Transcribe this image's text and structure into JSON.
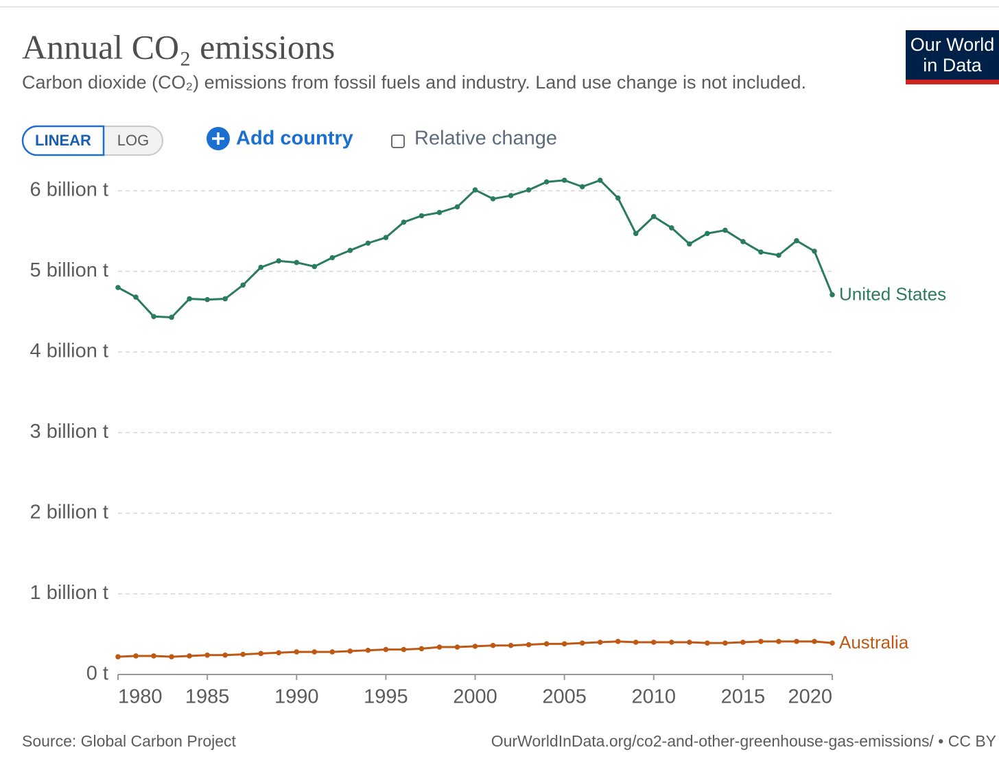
{
  "chart_data": {
    "type": "line",
    "title": "Annual CO₂ emissions",
    "subtitle": "Carbon dioxide (CO₂) emissions from fossil fuels and industry. Land use change is not included.",
    "x": [
      1980,
      1981,
      1982,
      1983,
      1984,
      1985,
      1986,
      1987,
      1988,
      1989,
      1990,
      1991,
      1992,
      1993,
      1994,
      1995,
      1996,
      1997,
      1998,
      1999,
      2000,
      2001,
      2002,
      2003,
      2004,
      2005,
      2006,
      2007,
      2008,
      2009,
      2010,
      2011,
      2012,
      2013,
      2014,
      2015,
      2016,
      2017,
      2018,
      2019,
      2020
    ],
    "series": [
      {
        "name": "United States",
        "color": "#2a7c5c",
        "values": [
          4800000000.0,
          4680000000.0,
          4440000000.0,
          4430000000.0,
          4660000000.0,
          4650000000.0,
          4660000000.0,
          4830000000.0,
          5050000000.0,
          5130000000.0,
          5110000000.0,
          5060000000.0,
          5170000000.0,
          5260000000.0,
          5350000000.0,
          5420000000.0,
          5610000000.0,
          5690000000.0,
          5730000000.0,
          5800000000.0,
          6010000000.0,
          5900000000.0,
          5940000000.0,
          6010000000.0,
          6110000000.0,
          6130000000.0,
          6050000000.0,
          6130000000.0,
          5910000000.0,
          5470000000.0,
          5680000000.0,
          5540000000.0,
          5340000000.0,
          5470000000.0,
          5510000000.0,
          5370000000.0,
          5240000000.0,
          5200000000.0,
          5380000000.0,
          5250000000.0,
          4710000000.0
        ]
      },
      {
        "name": "Australia",
        "color": "#be5915",
        "values": [
          220000000.0,
          230000000.0,
          230000000.0,
          220000000.0,
          230000000.0,
          240000000.0,
          240000000.0,
          250000000.0,
          260000000.0,
          270000000.0,
          280000000.0,
          280000000.0,
          280000000.0,
          290000000.0,
          300000000.0,
          310000000.0,
          310000000.0,
          320000000.0,
          340000000.0,
          340000000.0,
          350000000.0,
          360000000.0,
          360000000.0,
          370000000.0,
          380000000.0,
          380000000.0,
          390000000.0,
          400000000.0,
          410000000.0,
          400000000.0,
          400000000.0,
          400000000.0,
          400000000.0,
          390000000.0,
          390000000.0,
          400000000.0,
          410000000.0,
          410000000.0,
          410000000.0,
          410000000.0,
          390000000.0
        ]
      }
    ],
    "xlim": [
      1980,
      2020
    ],
    "xticks": [
      1980,
      1985,
      1990,
      1995,
      2000,
      2005,
      2010,
      2015,
      2020
    ],
    "ylim": [
      0,
      6000000000.0
    ],
    "yticks": [
      {
        "value": 0,
        "label": "0 t"
      },
      {
        "value": 1000000000.0,
        "label": "1 billion t"
      },
      {
        "value": 2000000000.0,
        "label": "2 billion t"
      },
      {
        "value": 3000000000.0,
        "label": "3 billion t"
      },
      {
        "value": 4000000000.0,
        "label": "4 billion t"
      },
      {
        "value": 5000000000.0,
        "label": "5 billion t"
      },
      {
        "value": 6000000000.0,
        "label": "6 billion t"
      }
    ],
    "grid": true,
    "source": "Source: Global Carbon Project",
    "url": "OurWorldInData.org/co2-and-other-greenhouse-gas-emissions/ • CC BY"
  },
  "controls": {
    "linear": "LINEAR",
    "log": "LOG",
    "add_country": "Add country",
    "relative_change": "Relative change"
  },
  "logo": {
    "line1": "Our World",
    "line2": "in Data"
  }
}
